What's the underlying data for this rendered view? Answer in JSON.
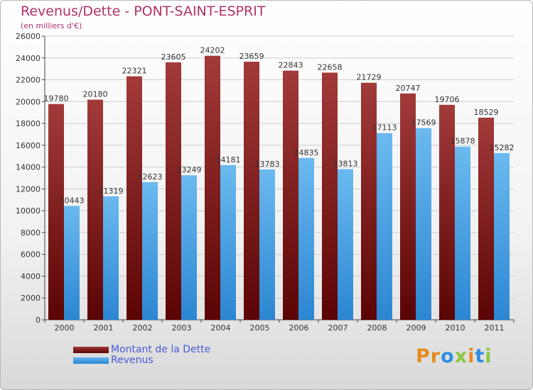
{
  "title": "Revenus/Dette - PONT-SAINT-ESPRIT",
  "subtitle": "(en milliers d'€)",
  "logo": [
    "P",
    "r",
    "o",
    "x",
    "i",
    "t",
    "i"
  ],
  "colors": {
    "dette_top": "#a33a3a",
    "dette_bottom": "#5b0404",
    "revenus_top": "#6bbaf0",
    "revenus_bottom": "#2b86d2",
    "text": "#333333",
    "title": "#b0306a",
    "legend": "#4a5ad8",
    "logo": [
      "#e58a1f",
      "#e58a1f",
      "#2e8de0",
      "#8cc63e",
      "#e58a1f",
      "#2e8de0",
      "#8cc63e"
    ]
  },
  "chart_data": {
    "type": "bar",
    "title": "Revenus/Dette - PONT-SAINT-ESPRIT",
    "ylabel": "(en milliers d'€)",
    "categories": [
      "2000",
      "2001",
      "2002",
      "2003",
      "2004",
      "2005",
      "2006",
      "2007",
      "2008",
      "2009",
      "2010",
      "2011"
    ],
    "series": [
      {
        "name": "Montant de la Dette",
        "values": [
          19780,
          20180,
          22321,
          23605,
          24202,
          23659,
          22843,
          22658,
          21729,
          20747,
          19706,
          18529
        ]
      },
      {
        "name": "Revenus",
        "values": [
          10443,
          11319,
          12623,
          13249,
          14181,
          13783,
          14835,
          13813,
          17113,
          17569,
          15878,
          15282
        ]
      }
    ],
    "ylim": [
      0,
      26000
    ],
    "yticks": [
      "0",
      "2000",
      "4000",
      "6000",
      "8000",
      "10000",
      "12000",
      "14000",
      "16000",
      "18000",
      "20000",
      "22000",
      "24000",
      "26000"
    ],
    "grid": true,
    "legend": "bottom-left"
  }
}
